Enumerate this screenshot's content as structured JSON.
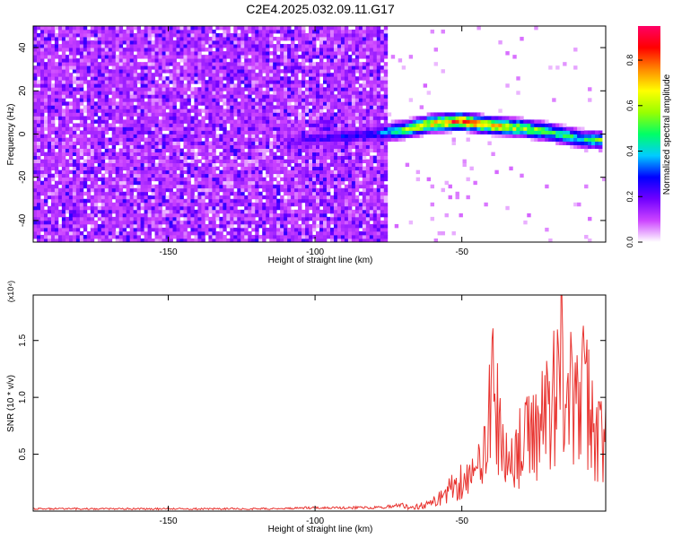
{
  "title": "C2E4.2025.032.09.11.G17",
  "chart_data": [
    {
      "type": "heatmap",
      "xlabel": "Height of straight line (km)",
      "ylabel": "Frequency (Hz)",
      "xlim": [
        -196,
        -1
      ],
      "ylim": [
        -50,
        50
      ],
      "xticks": [
        -150,
        -100,
        -50
      ],
      "yticks": [
        -40,
        -20,
        0,
        20,
        40
      ],
      "colorbar": {
        "label": "Normalized spectral amplitude",
        "range": [
          0,
          0.95
        ],
        "ticks": [
          0.0,
          0.2,
          0.4,
          0.6,
          0.8
        ],
        "colors": [
          "#ffffff",
          "#cc44ff",
          "#7000ff",
          "#0000ff",
          "#00ccff",
          "#00ff66",
          "#99ff00",
          "#ffff00",
          "#ff8800",
          "#ff0000",
          "#ff0066"
        ]
      },
      "ridge": {
        "x": [
          -110,
          -100,
          -90,
          -80,
          -70,
          -60,
          -50,
          -40,
          -30,
          -20,
          -10,
          -2
        ],
        "y": [
          -4,
          -2,
          -1,
          0,
          2,
          5,
          6,
          4,
          3,
          1,
          -2,
          -3
        ],
        "peak_amplitude": [
          0.2,
          0.25,
          0.3,
          0.3,
          0.6,
          0.8,
          0.9,
          0.8,
          0.7,
          0.6,
          0.5,
          0.6
        ]
      },
      "noise_region_x": [
        -196,
        -75
      ]
    },
    {
      "type": "line",
      "xlabel": "Height of straight line (km)",
      "ylabel": "SNR (10 * v/v)",
      "y_multiplier": "(x10⁴)",
      "xlim": [
        -196,
        -1
      ],
      "ylim": [
        0,
        1.9
      ],
      "xticks": [
        -150,
        -100,
        -50
      ],
      "yticks": [
        0.5,
        1.0,
        1.5
      ],
      "series": [
        {
          "color": "#e8332f",
          "x": [
            -196,
            -160,
            -120,
            -100,
            -80,
            -70,
            -65,
            -60,
            -55,
            -50,
            -45,
            -42,
            -40,
            -35,
            -30,
            -25,
            -20,
            -17,
            -15,
            -12,
            -10,
            -8,
            -5,
            -2
          ],
          "values": [
            0.02,
            0.02,
            0.02,
            0.03,
            0.03,
            0.05,
            0.06,
            0.1,
            0.25,
            0.4,
            0.45,
            1.0,
            1.55,
            0.6,
            0.8,
            1.0,
            1.3,
            1.8,
            1.9,
            1.2,
            1.4,
            1.5,
            1.0,
            0.9
          ]
        }
      ]
    }
  ]
}
